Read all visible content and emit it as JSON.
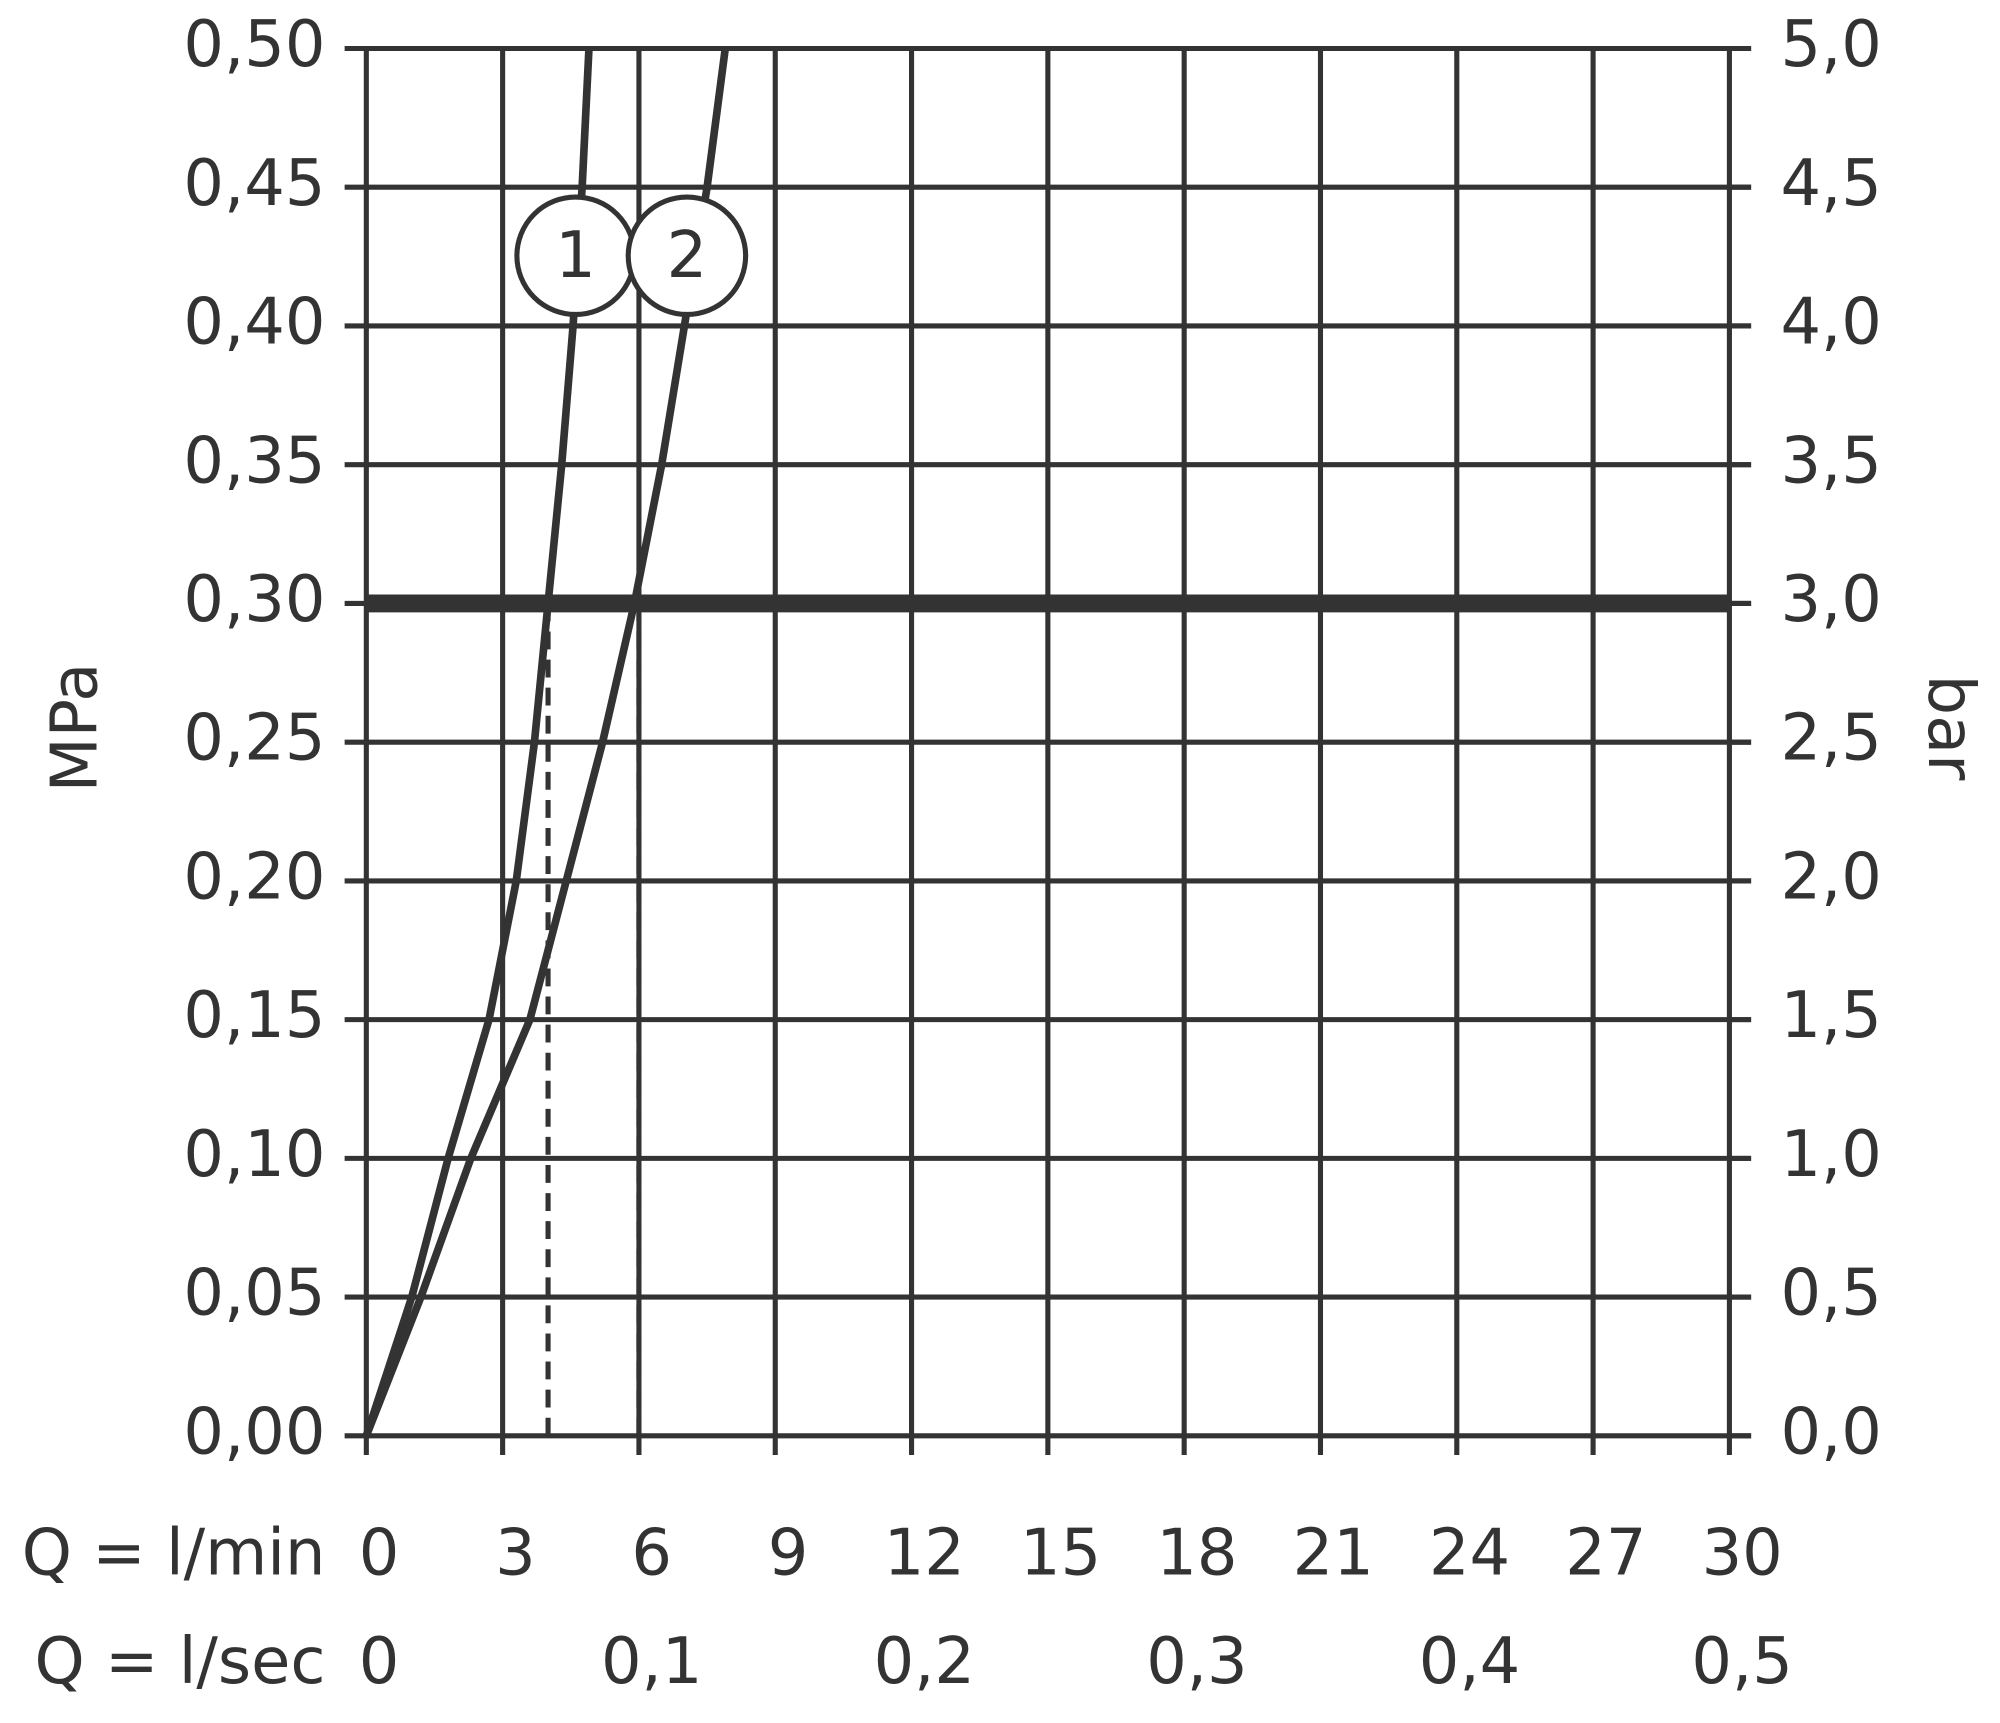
{
  "chart_data": {
    "type": "line",
    "y_label": "MPa",
    "y2_label": "bar",
    "x_label": "Q = l/min",
    "x2_label": "Q = l/sec",
    "xlim": [
      0,
      30
    ],
    "xticks": [
      0,
      3,
      6,
      9,
      12,
      15,
      18,
      21,
      24,
      27,
      30
    ],
    "x2lim": [
      0,
      0.5
    ],
    "x2ticks": [
      0,
      {
        "value": 0.1,
        "label": "0,1"
      },
      {
        "value": 0.2,
        "label": "0,2"
      },
      {
        "value": 0.3,
        "label": "0,3"
      },
      {
        "value": 0.4,
        "label": "0,4"
      },
      {
        "value": 0.5,
        "label": "0,5"
      }
    ],
    "ylim": [
      0,
      0.5
    ],
    "yticks": [
      {
        "value": 0,
        "label": "0,00"
      },
      {
        "value": 0.05,
        "label": "0,05"
      },
      {
        "value": 0.1,
        "label": "0,10"
      },
      {
        "value": 0.15,
        "label": "0,15"
      },
      {
        "value": 0.2,
        "label": "0,20"
      },
      {
        "value": 0.25,
        "label": "0,25"
      },
      {
        "value": 0.3,
        "label": "0,30"
      },
      {
        "value": 0.35,
        "label": "0,35"
      },
      {
        "value": 0.4,
        "label": "0,40"
      },
      {
        "value": 0.45,
        "label": "0,45"
      },
      {
        "value": 0.5,
        "label": "0,50"
      }
    ],
    "y2lim": [
      0,
      5
    ],
    "y2ticks": [
      {
        "value": 0,
        "label": "0,0"
      },
      {
        "value": 0.5,
        "label": "0,5"
      },
      {
        "value": 1,
        "label": "1,0"
      },
      {
        "value": 1.5,
        "label": "1,5"
      },
      {
        "value": 2,
        "label": "2,0"
      },
      {
        "value": 2.5,
        "label": "2,5"
      },
      {
        "value": 3,
        "label": "3,0"
      },
      {
        "value": 3.5,
        "label": "3,5"
      },
      {
        "value": 4,
        "label": "4,0"
      },
      {
        "value": 4.5,
        "label": "4,5"
      },
      {
        "value": 5,
        "label": "5,0"
      }
    ],
    "grid": true,
    "reference_y": 0.3,
    "reference_x": [
      4,
      6
    ],
    "series": [
      {
        "name": "1",
        "color": "#333333",
        "x": [
          0,
          1.0,
          1.8,
          2.7,
          3.3,
          3.7,
          4.0,
          4.3,
          4.55,
          4.75,
          4.9
        ],
        "values": [
          0,
          0.05,
          0.1,
          0.15,
          0.2,
          0.25,
          0.3,
          0.35,
          0.4,
          0.45,
          0.5
        ]
      },
      {
        "name": "2",
        "color": "#333333",
        "x": [
          0,
          1.2,
          2.3,
          3.6,
          4.4,
          5.2,
          5.9,
          6.5,
          7.0,
          7.5,
          7.9
        ],
        "values": [
          0,
          0.05,
          0.1,
          0.15,
          0.2,
          0.25,
          0.3,
          0.35,
          0.4,
          0.45,
          0.5
        ]
      }
    ]
  }
}
